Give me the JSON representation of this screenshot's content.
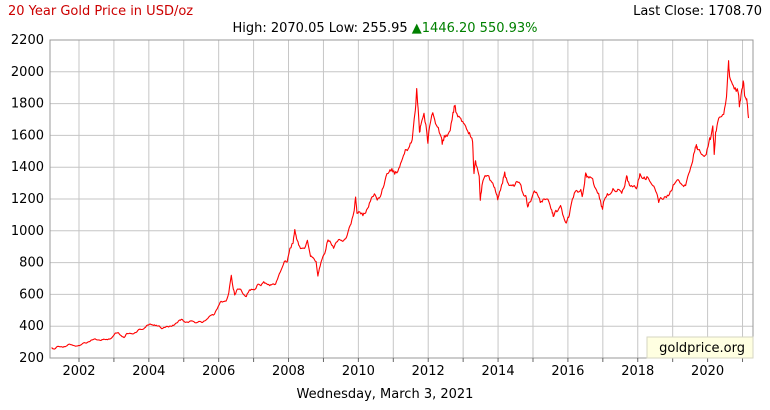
{
  "header": {
    "title": "20 Year Gold Price in USD/oz",
    "last_close": "Last Close: 1708.70",
    "high_low": "High: 2070.05 Low: 255.95",
    "change": "▲1446.20 550.93%"
  },
  "footer": {
    "date": "Wednesday, March 3, 2021"
  },
  "watermark": "goldprice.org",
  "colors": {
    "title": "#cc0000",
    "line": "#ff0000",
    "change": "#008000",
    "grid": "#c6c6c6",
    "border": "#999999",
    "tick": "#666666",
    "watermark_bg": "#ffffe1",
    "watermark_border": "#d6d6c2",
    "text": "#000000",
    "background": "#ffffff"
  },
  "chart_data": {
    "type": "line",
    "title": "20 Year Gold Price in USD/oz",
    "series_name": "Gold Price USD/oz",
    "line_color": "#ff0000",
    "x_range": [
      2001.17,
      2021.3
    ],
    "ylim": [
      200,
      2200
    ],
    "y_ticks": [
      200,
      400,
      600,
      800,
      1000,
      1200,
      1400,
      1600,
      1800,
      2000,
      2200
    ],
    "x_gridline_years": [
      2002,
      2003,
      2004,
      2005,
      2006,
      2007,
      2008,
      2009,
      2010,
      2011,
      2012,
      2013,
      2014,
      2015,
      2016,
      2017,
      2018,
      2019,
      2020,
      2021
    ],
    "x_label_years": [
      2002,
      2004,
      2006,
      2008,
      2010,
      2012,
      2014,
      2016,
      2018,
      2020
    ],
    "grid": true,
    "legend": "none",
    "high": 2070.05,
    "low": 255.95,
    "change_abs": 1446.2,
    "change_pct": 550.93,
    "last_close": 1708.7,
    "points": [
      [
        2001.21,
        263
      ],
      [
        2001.27,
        258
      ],
      [
        2001.3,
        256
      ],
      [
        2001.37,
        272
      ],
      [
        2001.46,
        270
      ],
      [
        2001.54,
        267
      ],
      [
        2001.63,
        274
      ],
      [
        2001.71,
        287
      ],
      [
        2001.79,
        283
      ],
      [
        2001.88,
        276
      ],
      [
        2001.96,
        276
      ],
      [
        2002.04,
        281
      ],
      [
        2002.13,
        295
      ],
      [
        2002.21,
        294
      ],
      [
        2002.29,
        302
      ],
      [
        2002.37,
        314
      ],
      [
        2002.46,
        321
      ],
      [
        2002.54,
        313
      ],
      [
        2002.63,
        310
      ],
      [
        2002.71,
        319
      ],
      [
        2002.79,
        317
      ],
      [
        2002.88,
        319
      ],
      [
        2002.96,
        333
      ],
      [
        2003.04,
        357
      ],
      [
        2003.13,
        359
      ],
      [
        2003.21,
        340
      ],
      [
        2003.29,
        328
      ],
      [
        2003.37,
        355
      ],
      [
        2003.46,
        356
      ],
      [
        2003.54,
        351
      ],
      [
        2003.63,
        360
      ],
      [
        2003.71,
        379
      ],
      [
        2003.79,
        379
      ],
      [
        2003.88,
        389
      ],
      [
        2003.96,
        407
      ],
      [
        2004.04,
        414
      ],
      [
        2004.13,
        405
      ],
      [
        2004.21,
        406
      ],
      [
        2004.29,
        403
      ],
      [
        2004.37,
        384
      ],
      [
        2004.46,
        392
      ],
      [
        2004.54,
        398
      ],
      [
        2004.63,
        400
      ],
      [
        2004.71,
        405
      ],
      [
        2004.79,
        420
      ],
      [
        2004.88,
        439
      ],
      [
        2004.96,
        442
      ],
      [
        2005.04,
        424
      ],
      [
        2005.13,
        423
      ],
      [
        2005.21,
        434
      ],
      [
        2005.29,
        429
      ],
      [
        2005.37,
        422
      ],
      [
        2005.46,
        430
      ],
      [
        2005.54,
        424
      ],
      [
        2005.63,
        437
      ],
      [
        2005.71,
        456
      ],
      [
        2005.79,
        470
      ],
      [
        2005.88,
        476
      ],
      [
        2005.96,
        510
      ],
      [
        2006.04,
        550
      ],
      [
        2006.13,
        555
      ],
      [
        2006.21,
        557
      ],
      [
        2006.29,
        611
      ],
      [
        2006.36,
        720
      ],
      [
        2006.4,
        660
      ],
      [
        2006.46,
        596
      ],
      [
        2006.54,
        634
      ],
      [
        2006.63,
        632
      ],
      [
        2006.71,
        599
      ],
      [
        2006.79,
        586
      ],
      [
        2006.88,
        628
      ],
      [
        2006.96,
        630
      ],
      [
        2007.04,
        632
      ],
      [
        2007.13,
        665
      ],
      [
        2007.21,
        655
      ],
      [
        2007.29,
        680
      ],
      [
        2007.37,
        667
      ],
      [
        2007.46,
        655
      ],
      [
        2007.54,
        665
      ],
      [
        2007.63,
        665
      ],
      [
        2007.71,
        713
      ],
      [
        2007.79,
        755
      ],
      [
        2007.88,
        806
      ],
      [
        2007.96,
        803
      ],
      [
        2008.04,
        890
      ],
      [
        2008.13,
        922
      ],
      [
        2008.18,
        1008
      ],
      [
        2008.23,
        950
      ],
      [
        2008.29,
        910
      ],
      [
        2008.37,
        889
      ],
      [
        2008.46,
        889
      ],
      [
        2008.54,
        940
      ],
      [
        2008.63,
        839
      ],
      [
        2008.71,
        830
      ],
      [
        2008.79,
        807
      ],
      [
        2008.84,
        715
      ],
      [
        2008.88,
        761
      ],
      [
        2008.96,
        822
      ],
      [
        2009.04,
        858
      ],
      [
        2009.13,
        943
      ],
      [
        2009.21,
        924
      ],
      [
        2009.29,
        890
      ],
      [
        2009.37,
        929
      ],
      [
        2009.46,
        946
      ],
      [
        2009.54,
        934
      ],
      [
        2009.63,
        949
      ],
      [
        2009.71,
        997
      ],
      [
        2009.79,
        1043
      ],
      [
        2009.88,
        1127
      ],
      [
        2009.92,
        1212
      ],
      [
        2009.96,
        1110
      ],
      [
        2010.04,
        1118
      ],
      [
        2010.13,
        1095
      ],
      [
        2010.21,
        1113
      ],
      [
        2010.29,
        1149
      ],
      [
        2010.37,
        1205
      ],
      [
        2010.46,
        1233
      ],
      [
        2010.54,
        1193
      ],
      [
        2010.63,
        1216
      ],
      [
        2010.71,
        1271
      ],
      [
        2010.79,
        1342
      ],
      [
        2010.88,
        1370
      ],
      [
        2010.96,
        1391
      ],
      [
        2011.04,
        1356
      ],
      [
        2011.13,
        1373
      ],
      [
        2011.21,
        1424
      ],
      [
        2011.29,
        1473
      ],
      [
        2011.37,
        1511
      ],
      [
        2011.46,
        1529
      ],
      [
        2011.54,
        1573
      ],
      [
        2011.63,
        1756
      ],
      [
        2011.67,
        1895
      ],
      [
        2011.71,
        1772
      ],
      [
        2011.75,
        1620
      ],
      [
        2011.79,
        1666
      ],
      [
        2011.88,
        1739
      ],
      [
        2011.96,
        1620
      ],
      [
        2011.99,
        1550
      ],
      [
        2012.04,
        1656
      ],
      [
        2012.13,
        1743
      ],
      [
        2012.21,
        1674
      ],
      [
        2012.29,
        1650
      ],
      [
        2012.37,
        1591
      ],
      [
        2012.4,
        1544
      ],
      [
        2012.46,
        1598
      ],
      [
        2012.54,
        1594
      ],
      [
        2012.63,
        1630
      ],
      [
        2012.71,
        1745
      ],
      [
        2012.76,
        1787
      ],
      [
        2012.79,
        1747
      ],
      [
        2012.88,
        1721
      ],
      [
        2012.96,
        1688
      ],
      [
        2013.04,
        1671
      ],
      [
        2013.13,
        1627
      ],
      [
        2013.21,
        1593
      ],
      [
        2013.27,
        1560
      ],
      [
        2013.31,
        1360
      ],
      [
        2013.35,
        1440
      ],
      [
        2013.37,
        1414
      ],
      [
        2013.46,
        1343
      ],
      [
        2013.49,
        1192
      ],
      [
        2013.54,
        1286
      ],
      [
        2013.63,
        1347
      ],
      [
        2013.71,
        1348
      ],
      [
        2013.79,
        1316
      ],
      [
        2013.88,
        1276
      ],
      [
        2013.96,
        1225
      ],
      [
        2013.99,
        1195
      ],
      [
        2014.04,
        1244
      ],
      [
        2014.13,
        1300
      ],
      [
        2014.19,
        1370
      ],
      [
        2014.21,
        1336
      ],
      [
        2014.29,
        1298
      ],
      [
        2014.37,
        1288
      ],
      [
        2014.46,
        1279
      ],
      [
        2014.54,
        1311
      ],
      [
        2014.63,
        1296
      ],
      [
        2014.71,
        1237
      ],
      [
        2014.79,
        1222
      ],
      [
        2014.85,
        1150
      ],
      [
        2014.88,
        1176
      ],
      [
        2014.96,
        1201
      ],
      [
        2015.04,
        1251
      ],
      [
        2015.13,
        1227
      ],
      [
        2015.21,
        1178
      ],
      [
        2015.29,
        1198
      ],
      [
        2015.37,
        1198
      ],
      [
        2015.46,
        1181
      ],
      [
        2015.54,
        1130
      ],
      [
        2015.58,
        1090
      ],
      [
        2015.63,
        1118
      ],
      [
        2015.71,
        1125
      ],
      [
        2015.79,
        1159
      ],
      [
        2015.88,
        1086
      ],
      [
        2015.94,
        1050
      ],
      [
        2015.98,
        1068
      ],
      [
        2016.04,
        1097
      ],
      [
        2016.13,
        1200
      ],
      [
        2016.21,
        1246
      ],
      [
        2016.29,
        1242
      ],
      [
        2016.37,
        1260
      ],
      [
        2016.41,
        1215
      ],
      [
        2016.46,
        1276
      ],
      [
        2016.51,
        1364
      ],
      [
        2016.54,
        1337
      ],
      [
        2016.63,
        1340
      ],
      [
        2016.71,
        1327
      ],
      [
        2016.79,
        1267
      ],
      [
        2016.88,
        1236
      ],
      [
        2016.96,
        1152
      ],
      [
        2016.99,
        1135
      ],
      [
        2017.04,
        1192
      ],
      [
        2017.13,
        1234
      ],
      [
        2017.21,
        1231
      ],
      [
        2017.29,
        1266
      ],
      [
        2017.37,
        1246
      ],
      [
        2017.46,
        1260
      ],
      [
        2017.54,
        1236
      ],
      [
        2017.63,
        1283
      ],
      [
        2017.68,
        1346
      ],
      [
        2017.71,
        1314
      ],
      [
        2017.79,
        1280
      ],
      [
        2017.88,
        1282
      ],
      [
        2017.96,
        1264
      ],
      [
        2018.04,
        1331
      ],
      [
        2018.07,
        1358
      ],
      [
        2018.13,
        1330
      ],
      [
        2018.21,
        1325
      ],
      [
        2018.29,
        1335
      ],
      [
        2018.37,
        1303
      ],
      [
        2018.46,
        1281
      ],
      [
        2018.54,
        1238
      ],
      [
        2018.6,
        1178
      ],
      [
        2018.63,
        1201
      ],
      [
        2018.71,
        1198
      ],
      [
        2018.79,
        1215
      ],
      [
        2018.88,
        1221
      ],
      [
        2018.96,
        1250
      ],
      [
        2019.04,
        1292
      ],
      [
        2019.13,
        1320
      ],
      [
        2019.21,
        1301
      ],
      [
        2019.29,
        1286
      ],
      [
        2019.37,
        1284
      ],
      [
        2019.46,
        1359
      ],
      [
        2019.54,
        1413
      ],
      [
        2019.63,
        1500
      ],
      [
        2019.68,
        1542
      ],
      [
        2019.71,
        1511
      ],
      [
        2019.79,
        1495
      ],
      [
        2019.88,
        1471
      ],
      [
        2019.96,
        1479
      ],
      [
        2020.04,
        1561
      ],
      [
        2020.1,
        1597
      ],
      [
        2020.15,
        1660
      ],
      [
        2020.19,
        1480
      ],
      [
        2020.23,
        1620
      ],
      [
        2020.29,
        1683
      ],
      [
        2020.37,
        1716
      ],
      [
        2020.46,
        1732
      ],
      [
        2020.54,
        1843
      ],
      [
        2020.6,
        2070
      ],
      [
        2020.63,
        1969
      ],
      [
        2020.71,
        1922
      ],
      [
        2020.79,
        1900
      ],
      [
        2020.88,
        1866
      ],
      [
        2020.91,
        1780
      ],
      [
        2020.96,
        1858
      ],
      [
        2021.02,
        1943
      ],
      [
        2021.06,
        1850
      ],
      [
        2021.1,
        1830
      ],
      [
        2021.13,
        1808
      ],
      [
        2021.17,
        1708.7
      ]
    ]
  }
}
